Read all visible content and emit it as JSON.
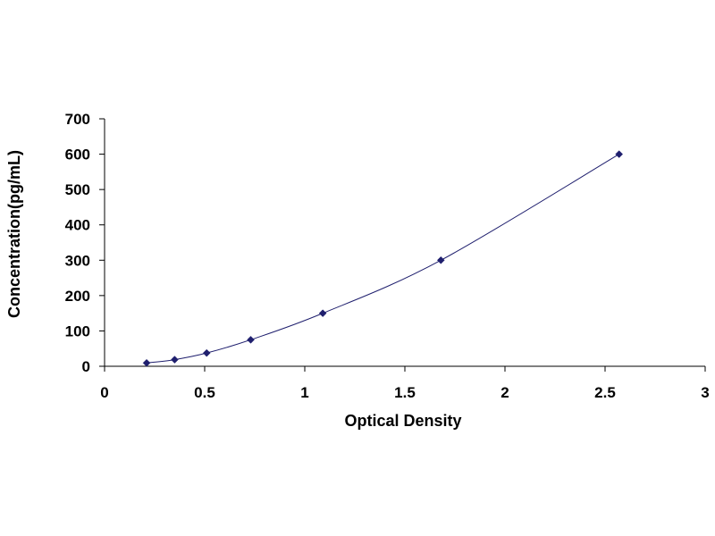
{
  "chart_data": {
    "type": "scatter",
    "title": "",
    "xlabel": "Optical Density",
    "ylabel": "Concentration(pg/mL)",
    "xlim": [
      0,
      3
    ],
    "ylim": [
      0,
      700
    ],
    "x_ticks": [
      "0",
      "0.5",
      "1",
      "1.5",
      "2",
      "2.5",
      "3"
    ],
    "y_ticks": [
      "0",
      "100",
      "200",
      "300",
      "400",
      "500",
      "600",
      "700"
    ],
    "grid": false,
    "legend": "none",
    "trendline": "smooth curve through points",
    "series": [
      {
        "x": [
          0.21,
          0.35,
          0.51,
          0.73,
          1.09,
          1.68,
          2.57
        ],
        "y": [
          9.38,
          18.75,
          37.5,
          75,
          150,
          300,
          600
        ]
      }
    ]
  },
  "colors": {
    "marker": "#1f1f6e",
    "line": "#1f1f6e",
    "axis": "#000000"
  }
}
